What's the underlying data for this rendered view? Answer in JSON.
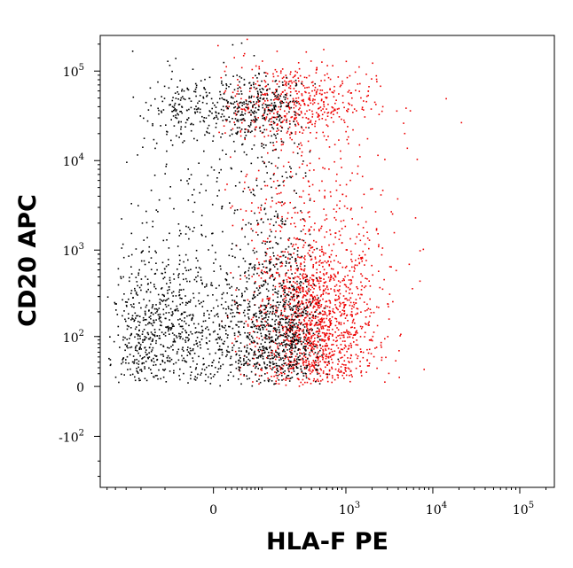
{
  "chart_data": {
    "type": "scatter",
    "title": "",
    "xlabel": "HLA-F PE",
    "ylabel": "CD20 APC",
    "x_scale": "biexponential",
    "y_scale": "biexponential",
    "xlim": [
      -600,
      250000
    ],
    "ylim": [
      -400,
      250000
    ],
    "grid": false,
    "legend": "none",
    "x_ticks": [
      {
        "value": 0,
        "base": "0",
        "exp": ""
      },
      {
        "value": 1000,
        "base": "10",
        "exp": "3"
      },
      {
        "value": 10000,
        "base": "10",
        "exp": "4"
      },
      {
        "value": 100000,
        "base": "10",
        "exp": "5"
      }
    ],
    "y_ticks": [
      {
        "value": 100000,
        "base": "10",
        "exp": "5"
      },
      {
        "value": 10000,
        "base": "10",
        "exp": "4"
      },
      {
        "value": 1000,
        "base": "10",
        "exp": "3"
      },
      {
        "value": 100,
        "base": "10",
        "exp": "2"
      },
      {
        "value": 0,
        "base": "0",
        "exp": ""
      },
      {
        "value": -100,
        "base": "-10",
        "exp": "2"
      }
    ],
    "series": [
      {
        "color": "#000000",
        "populations": [
          {
            "x_center": 30,
            "y_center": 120,
            "x_spread": 180,
            "y_spread": 0.45,
            "count": 1500
          },
          {
            "x_center": 40,
            "y_center": 40000,
            "x_spread": 90,
            "y_spread": 0.18,
            "count": 450
          },
          {
            "x_center": 60,
            "y_center": 2000,
            "x_spread": 150,
            "y_spread": 0.9,
            "count": 420
          }
        ]
      },
      {
        "color": "#ee0000",
        "populations": [
          {
            "x_center": 450,
            "y_center": 150,
            "x_spread": 0.35,
            "y_spread": 0.5,
            "count": 1300
          },
          {
            "x_center": 250,
            "y_center": 45000,
            "x_spread": 0.45,
            "y_spread": 0.22,
            "count": 450
          },
          {
            "x_center": 300,
            "y_center": 2500,
            "x_spread": 0.5,
            "y_spread": 0.9,
            "count": 420
          }
        ],
        "outliers": [
          {
            "x": 14000,
            "y": 50000
          },
          {
            "x": 21000,
            "y": 27000
          },
          {
            "x": 5000,
            "y": 14000
          },
          {
            "x": 6500,
            "y": 10500
          },
          {
            "x": 2200,
            "y": 90000
          },
          {
            "x": 7000,
            "y": 1000
          },
          {
            "x": 3000,
            "y": 250
          },
          {
            "x": 2500,
            "y": 85
          }
        ]
      }
    ]
  }
}
